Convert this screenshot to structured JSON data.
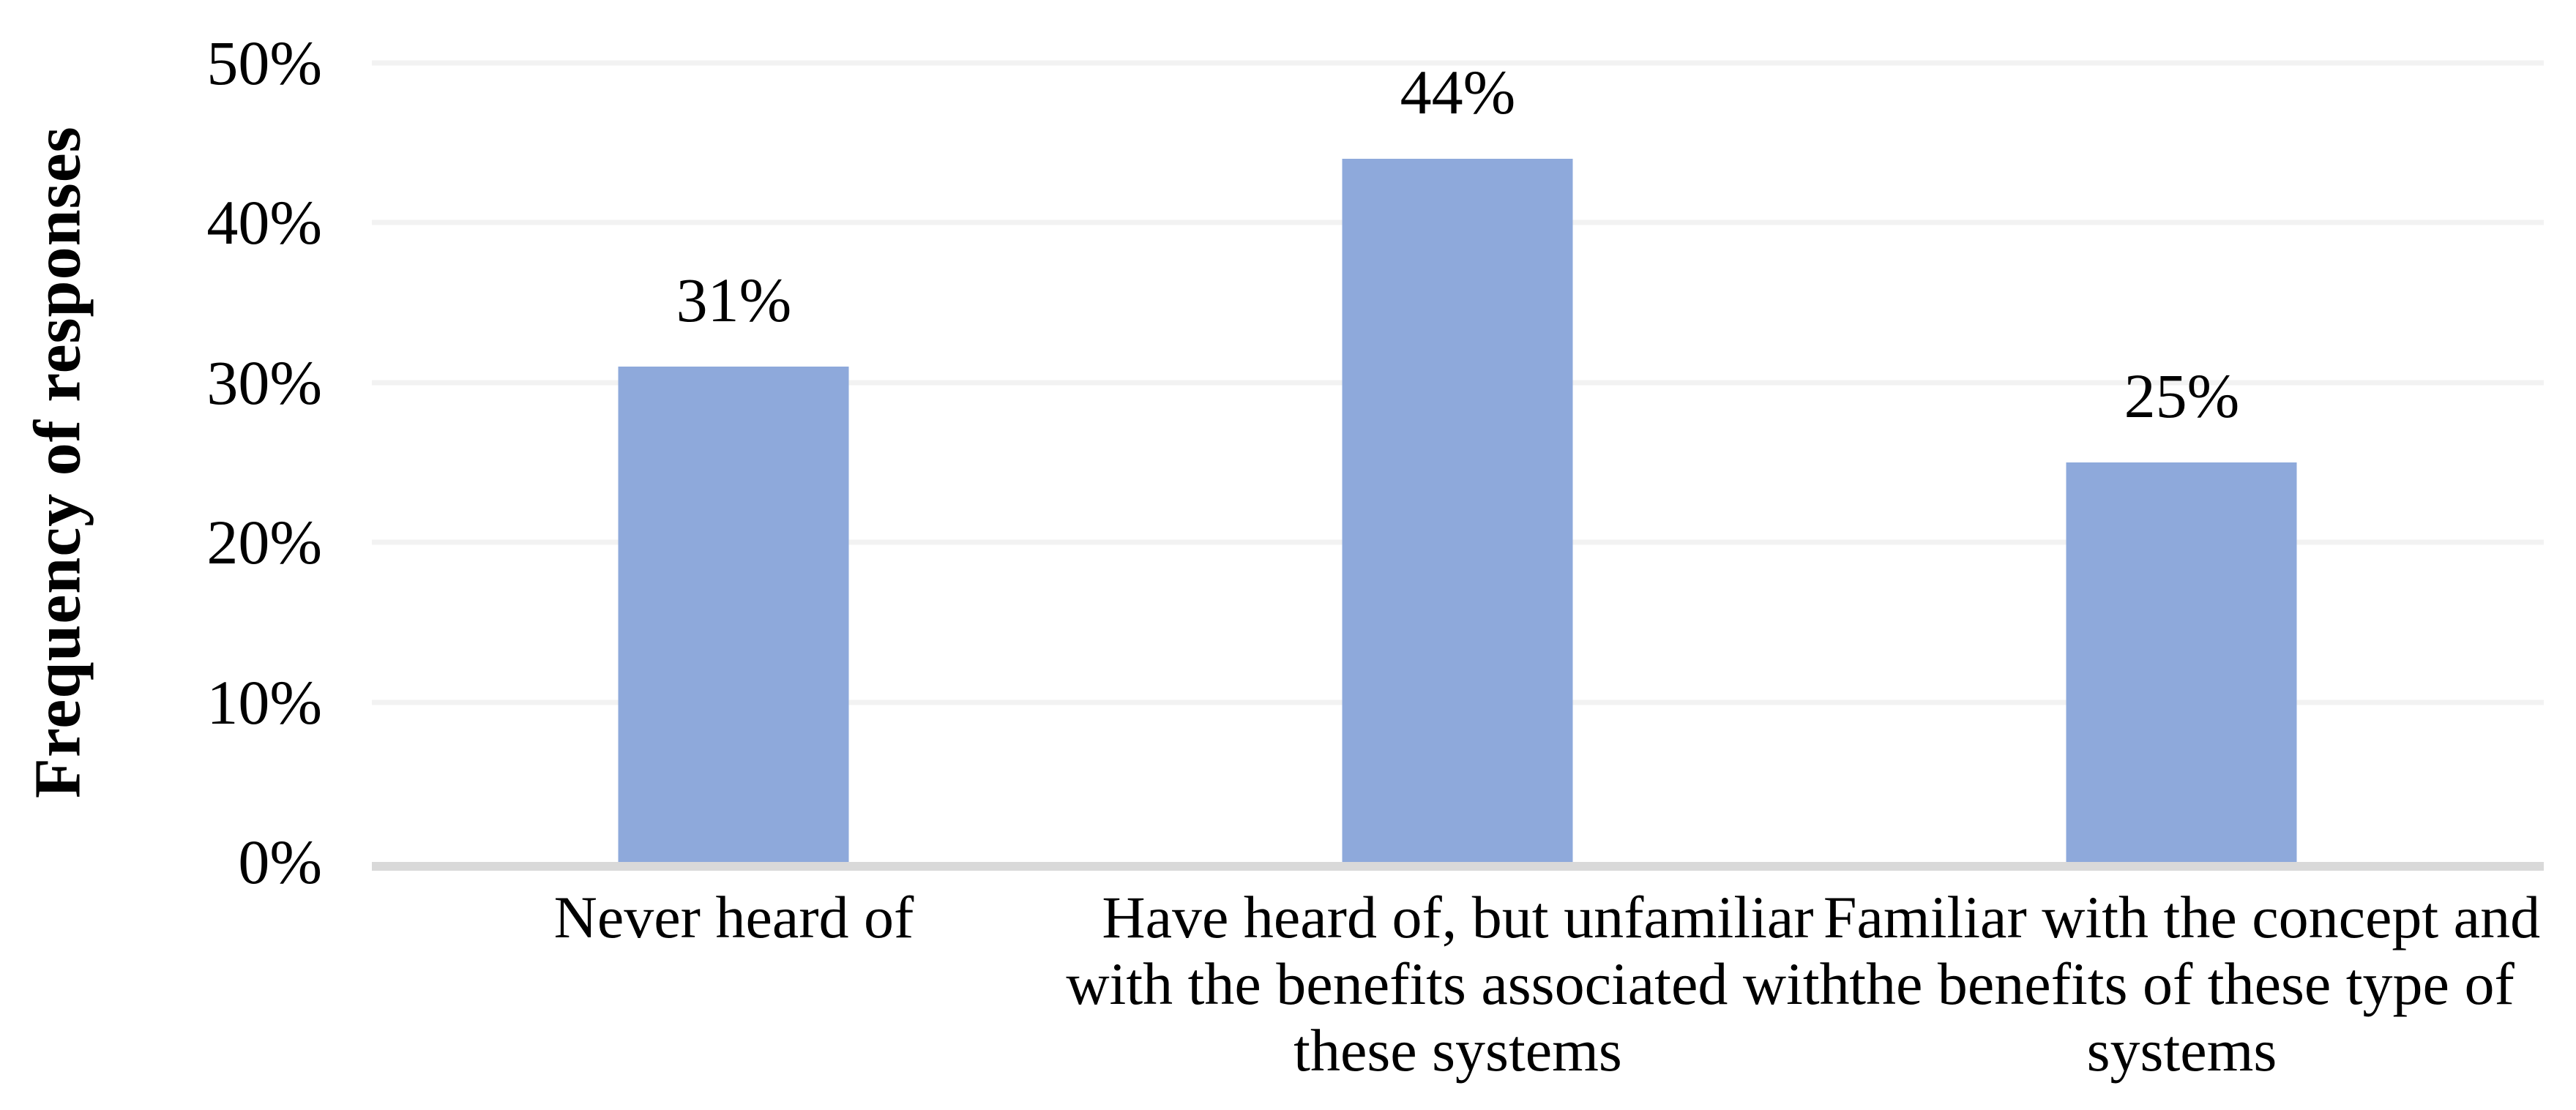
{
  "chart_data": {
    "type": "bar",
    "title": "",
    "ylabel": "Frequency of responses",
    "xlabel": "",
    "categories": [
      "Never heard of",
      "Have heard of, but unfamiliar\nwith the benefits associated with\nthese systems",
      "Familiar with the concept and\nthe benefits of these type of\nsystems"
    ],
    "values": [
      31,
      44,
      25
    ],
    "data_labels": [
      "31%",
      "44%",
      "25%"
    ],
    "ylim": [
      0,
      50
    ],
    "y_axis": {
      "ticks": [
        {
          "value": 0,
          "label": "0%"
        },
        {
          "value": 10,
          "label": "10%"
        },
        {
          "value": 20,
          "label": "20%"
        },
        {
          "value": 30,
          "label": "30%"
        },
        {
          "value": 40,
          "label": "40%"
        },
        {
          "value": 50,
          "label": "50%"
        }
      ]
    },
    "grid": "horizontal",
    "legend": "none",
    "colors": {
      "bar": "#8EA9DB",
      "gridline": "#F2F2F2",
      "axis_line": "#D9D9D9",
      "text": "#000000"
    }
  }
}
